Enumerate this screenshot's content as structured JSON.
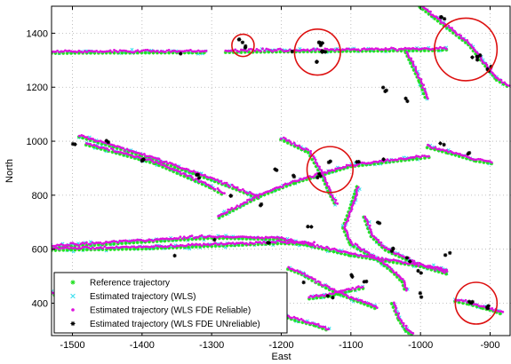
{
  "colors": {
    "reference": "#22e022",
    "wls": "#33ddee",
    "fde_reliable": "#dd11dd",
    "fde_unreliable": "#000000",
    "circle": "#dd1111",
    "grid": "#b0b0b0"
  },
  "chart_data": {
    "type": "scatter",
    "title": "",
    "xlabel": "East",
    "ylabel": "North",
    "xlim": [
      -1530,
      -870
    ],
    "ylim": [
      280,
      1500
    ],
    "xticks": [
      -1500,
      -1400,
      -1300,
      -1200,
      -1100,
      -1000,
      -900
    ],
    "yticks": [
      400,
      600,
      800,
      1000,
      1200,
      1400
    ],
    "xtick_labels": [
      "-1500",
      "-1400",
      "-1300",
      "-1200",
      "-1100",
      "-1000",
      "-900"
    ],
    "ytick_labels": [
      "400",
      "600",
      "800",
      "1000",
      "1200",
      "1400"
    ],
    "grid": true,
    "grid_style": "dotted",
    "legend_position": "lower-left",
    "series": [
      {
        "name": "Reference trajectory",
        "marker": "asterisk",
        "color_key": "reference"
      },
      {
        "name": "Estimated trajectory (WLS)",
        "marker": "x",
        "color_key": "wls"
      },
      {
        "name": "Estimated trajectory (WLS FDE Reliable)",
        "marker": "dot",
        "color_key": "fde_reliable"
      },
      {
        "name": "Estimated trajectory (WLS FDE UNreliable)",
        "marker": "asterisk",
        "color_key": "fde_unreliable"
      }
    ],
    "trajectory_segments": [
      {
        "points": [
          [
            -1530,
            1330
          ],
          [
            -1305,
            1332
          ]
        ]
      },
      {
        "points": [
          [
            -1280,
            1333
          ],
          [
            -980,
            1340
          ],
          [
            -960,
            1343
          ]
        ]
      },
      {
        "points": [
          [
            -1020,
            1330
          ],
          [
            -1000,
            1220
          ],
          [
            -990,
            1150
          ]
        ]
      },
      {
        "points": [
          [
            -1000,
            1500
          ],
          [
            -970,
            1440
          ],
          [
            -930,
            1360
          ],
          [
            -890,
            1230
          ],
          [
            -870,
            1200
          ]
        ]
      },
      {
        "points": [
          [
            -1490,
            1020
          ],
          [
            -1400,
            950
          ],
          [
            -1300,
            860
          ],
          [
            -1230,
            790
          ]
        ]
      },
      {
        "points": [
          [
            -1480,
            990
          ],
          [
            -1380,
            920
          ],
          [
            -1300,
            830
          ],
          [
            -1280,
            800
          ]
        ]
      },
      {
        "points": [
          [
            -1290,
            720
          ],
          [
            -1230,
            800
          ],
          [
            -1180,
            850
          ],
          [
            -1100,
            910
          ],
          [
            -1000,
            940
          ],
          [
            -985,
            945
          ]
        ]
      },
      {
        "points": [
          [
            -1530,
            600
          ],
          [
            -1400,
            605
          ],
          [
            -1300,
            615
          ],
          [
            -1200,
            625
          ],
          [
            -1150,
            620
          ]
        ]
      },
      {
        "points": [
          [
            -1530,
            610
          ],
          [
            -1300,
            645
          ],
          [
            -1200,
            640
          ],
          [
            -1100,
            580
          ],
          [
            -1050,
            560
          ],
          [
            -1000,
            540
          ],
          [
            -960,
            520
          ]
        ]
      },
      {
        "points": [
          [
            -1200,
            1010
          ],
          [
            -1160,
            960
          ],
          [
            -1140,
            870
          ],
          [
            -1130,
            810
          ],
          [
            -1120,
            760
          ]
        ]
      },
      {
        "points": [
          [
            -1090,
            830
          ],
          [
            -1100,
            750
          ],
          [
            -1110,
            680
          ],
          [
            -1100,
            620
          ],
          [
            -1060,
            560
          ],
          [
            -1040,
            520
          ],
          [
            -1025,
            480
          ],
          [
            -1020,
            440
          ]
        ]
      },
      {
        "points": [
          [
            -1160,
            420
          ],
          [
            -1130,
            430
          ],
          [
            -1100,
            450
          ],
          [
            -1080,
            460
          ]
        ]
      },
      {
        "points": [
          [
            -1080,
            720
          ],
          [
            -1070,
            650
          ],
          [
            -1050,
            600
          ],
          [
            -1000,
            540
          ],
          [
            -960,
            510
          ]
        ]
      },
      {
        "points": [
          [
            -1190,
            530
          ],
          [
            -1170,
            510
          ],
          [
            -1150,
            480
          ],
          [
            -1120,
            440
          ],
          [
            -1100,
            420
          ],
          [
            -1080,
            400
          ],
          [
            -1060,
            380
          ]
        ]
      },
      {
        "points": [
          [
            -1250,
            380
          ],
          [
            -1220,
            370
          ],
          [
            -1200,
            360
          ],
          [
            -1180,
            340
          ],
          [
            -1150,
            320
          ],
          [
            -1130,
            300
          ]
        ]
      },
      {
        "points": [
          [
            -1040,
            400
          ],
          [
            -1030,
            340
          ],
          [
            -1020,
            300
          ],
          [
            -1010,
            280
          ]
        ]
      },
      {
        "points": [
          [
            -990,
            980
          ],
          [
            -960,
            960
          ],
          [
            -920,
            930
          ],
          [
            -895,
            920
          ]
        ]
      },
      {
        "points": [
          [
            -950,
            410
          ],
          [
            -930,
            400
          ],
          [
            -910,
            385
          ],
          [
            -895,
            375
          ],
          [
            -880,
            360
          ]
        ]
      },
      {
        "points": [
          [
            -1530,
            440
          ],
          [
            -1500,
            400
          ],
          [
            -1470,
            330
          ]
        ]
      }
    ],
    "unreliable_clusters": [
      [
        -1260,
        1370,
        3
      ],
      [
        -1250,
        1350,
        2
      ],
      [
        -1145,
        1360,
        5
      ],
      [
        -1140,
        1330,
        4
      ],
      [
        -1150,
        1290,
        2
      ],
      [
        -970,
        1460,
        3
      ],
      [
        -920,
        1310,
        5
      ],
      [
        -900,
        1270,
        3
      ],
      [
        -1050,
        1190,
        3
      ],
      [
        -1020,
        1160,
        2
      ],
      [
        -1180,
        1330,
        1
      ],
      [
        -1340,
        1330,
        1
      ],
      [
        -1500,
        990,
        2
      ],
      [
        -1450,
        1000,
        2
      ],
      [
        -1400,
        930,
        4
      ],
      [
        -1320,
        870,
        3
      ],
      [
        -1270,
        800,
        2
      ],
      [
        -1230,
        760,
        2
      ],
      [
        -1210,
        900,
        2
      ],
      [
        -1180,
        870,
        2
      ],
      [
        -1145,
        870,
        3
      ],
      [
        -1130,
        920,
        2
      ],
      [
        -1090,
        925,
        2
      ],
      [
        -1050,
        930,
        1
      ],
      [
        -970,
        990,
        2
      ],
      [
        -930,
        960,
        2
      ],
      [
        -1160,
        680,
        2
      ],
      [
        -1220,
        620,
        2
      ],
      [
        -1300,
        640,
        1
      ],
      [
        -1060,
        700,
        2
      ],
      [
        -1040,
        600,
        3
      ],
      [
        -1020,
        560,
        2
      ],
      [
        -1000,
        520,
        2
      ],
      [
        -960,
        580,
        2
      ],
      [
        -1100,
        500,
        2
      ],
      [
        -1080,
        480,
        2
      ],
      [
        -1130,
        420,
        2
      ],
      [
        -1170,
        470,
        1
      ],
      [
        -930,
        400,
        3
      ],
      [
        -905,
        385,
        3
      ],
      [
        -1000,
        430,
        2
      ],
      [
        -1350,
        580,
        1
      ]
    ],
    "highlight_circles": [
      {
        "cx": -1255,
        "cy": 1355,
        "r_x": 16
      },
      {
        "cx": -1148,
        "cy": 1330,
        "r_x": 33
      },
      {
        "cx": -935,
        "cy": 1340,
        "r_x": 45
      },
      {
        "cx": -1130,
        "cy": 895,
        "r_x": 33
      },
      {
        "cx": -920,
        "cy": 400,
        "r_x": 30
      }
    ]
  }
}
